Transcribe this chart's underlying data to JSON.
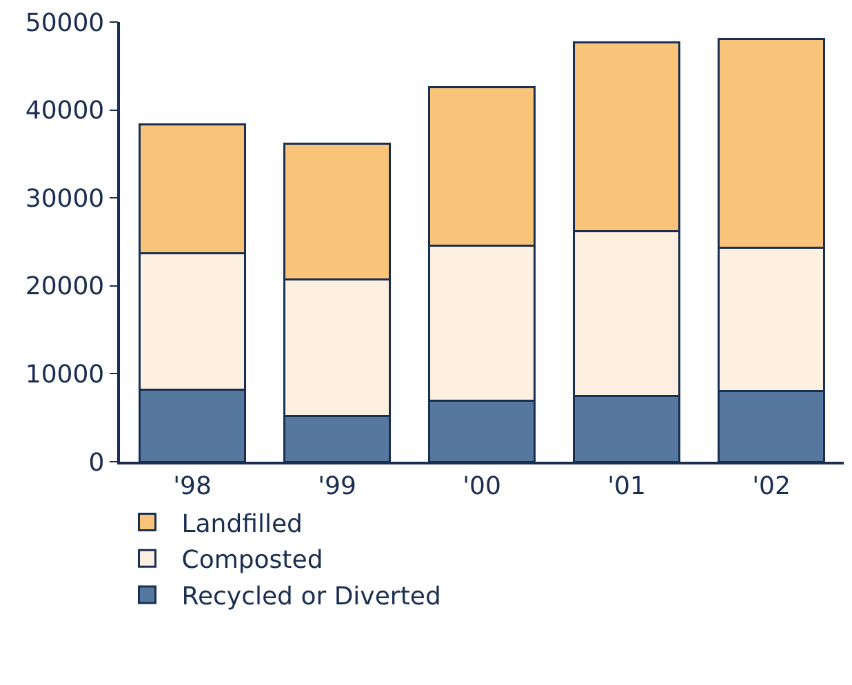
{
  "chart_data": {
    "type": "bar",
    "stacked": true,
    "categories": [
      "'98",
      "'99",
      "'00",
      "'01",
      "'02"
    ],
    "series": [
      {
        "name": "Recycled or Diverted",
        "color": "#56789e",
        "values": [
          8200,
          5200,
          6900,
          7500,
          8000
        ]
      },
      {
        "name": "Composted",
        "color": "#fdf0e0",
        "values": [
          15500,
          15500,
          17700,
          18700,
          16300
        ]
      },
      {
        "name": "Landfilled",
        "color": "#f9c47a",
        "values": [
          14700,
          15500,
          18000,
          21500,
          23800
        ]
      }
    ],
    "ylim": [
      0,
      50000
    ],
    "yticks": [
      0,
      10000,
      20000,
      30000,
      40000,
      50000
    ],
    "grid": false,
    "legend": "bottom"
  }
}
